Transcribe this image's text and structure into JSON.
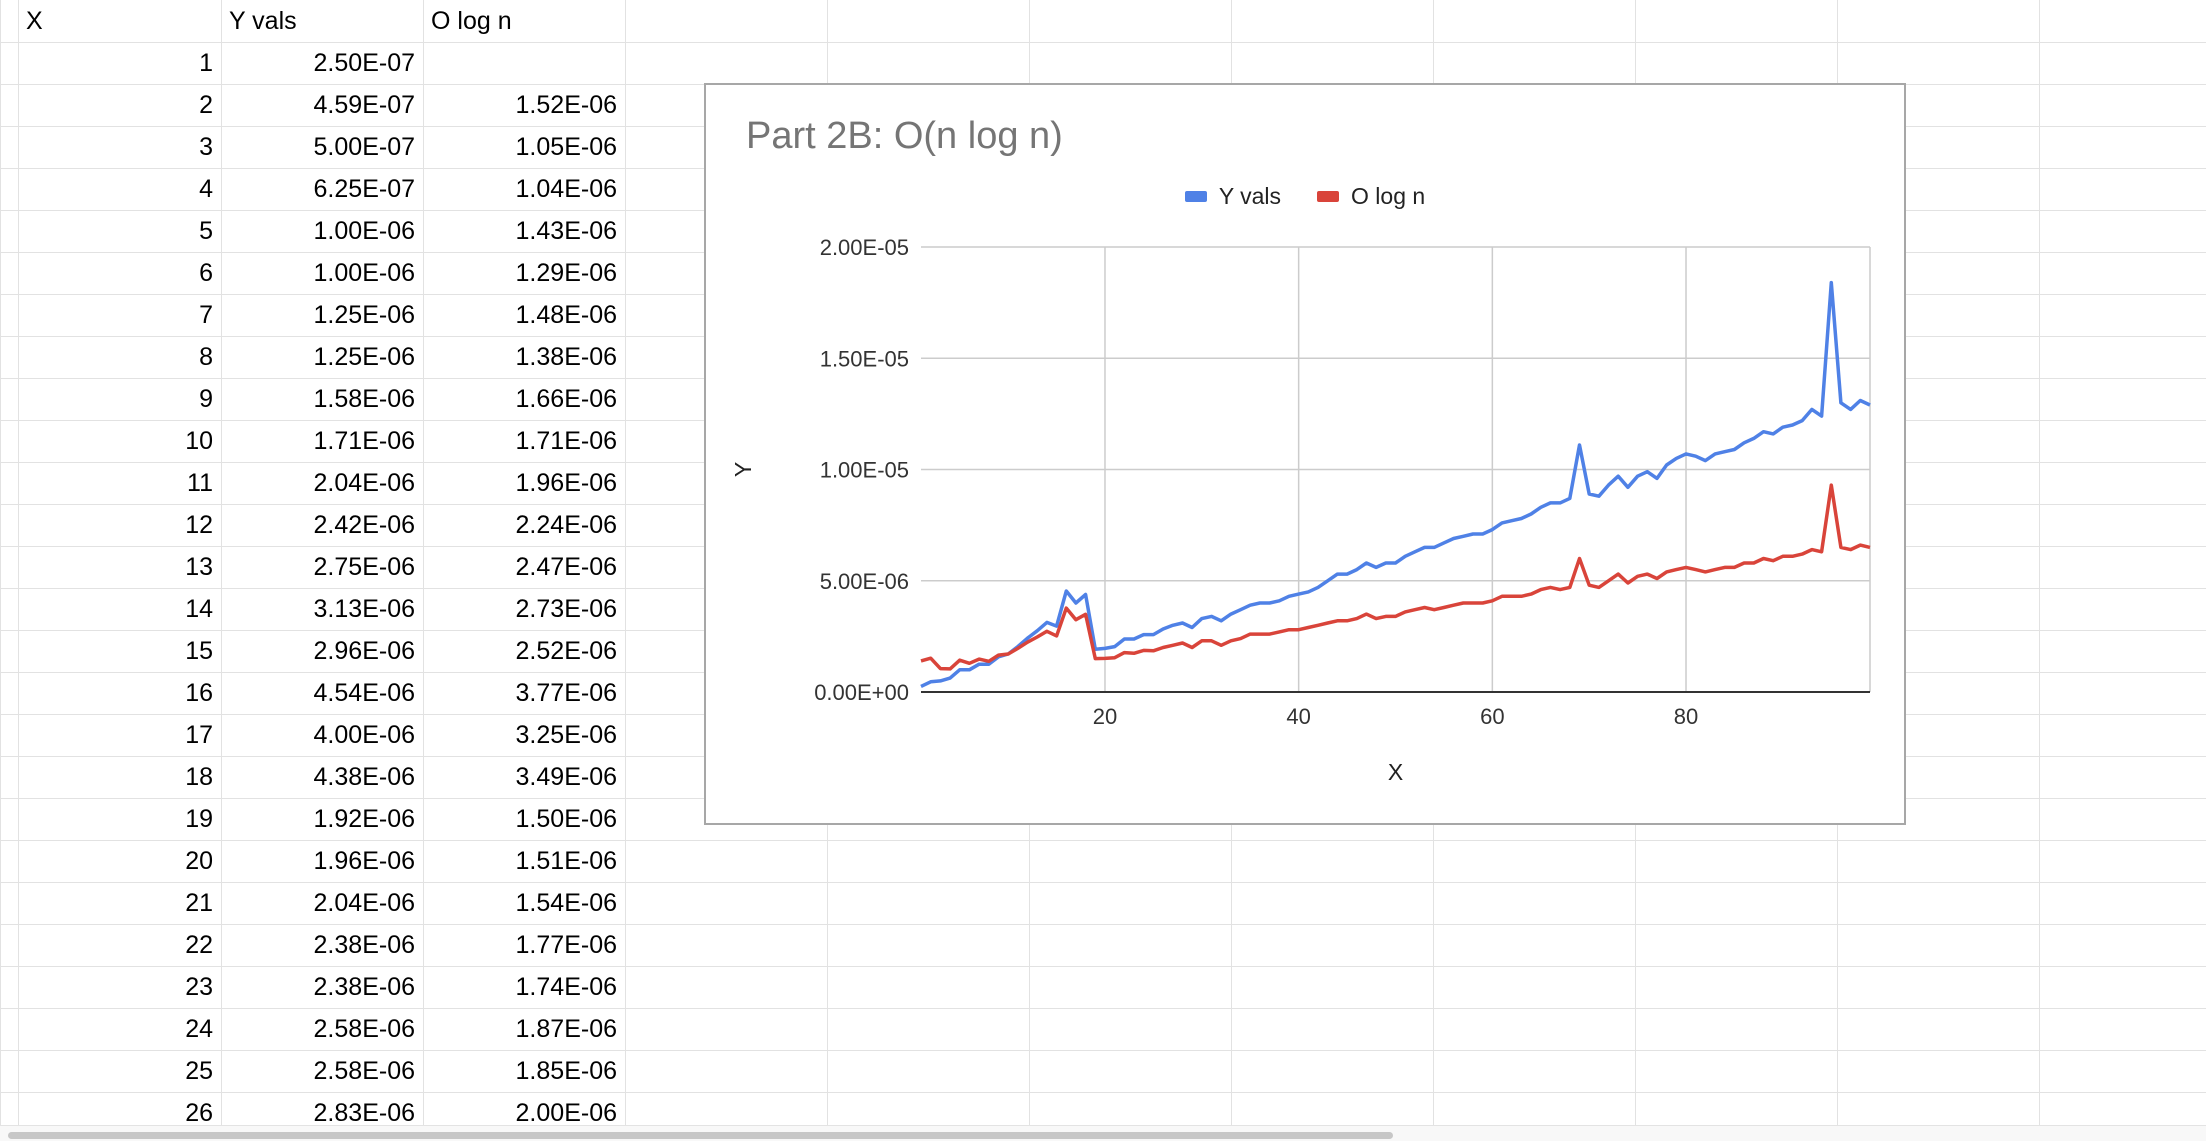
{
  "sheet": {
    "headers": [
      "X",
      "Y vals",
      "O log n"
    ],
    "rows": [
      [
        "1",
        "2.50E-07",
        ""
      ],
      [
        "2",
        "4.59E-07",
        "1.52E-06"
      ],
      [
        "3",
        "5.00E-07",
        "1.05E-06"
      ],
      [
        "4",
        "6.25E-07",
        "1.04E-06"
      ],
      [
        "5",
        "1.00E-06",
        "1.43E-06"
      ],
      [
        "6",
        "1.00E-06",
        "1.29E-06"
      ],
      [
        "7",
        "1.25E-06",
        "1.48E-06"
      ],
      [
        "8",
        "1.25E-06",
        "1.38E-06"
      ],
      [
        "9",
        "1.58E-06",
        "1.66E-06"
      ],
      [
        "10",
        "1.71E-06",
        "1.71E-06"
      ],
      [
        "11",
        "2.04E-06",
        "1.96E-06"
      ],
      [
        "12",
        "2.42E-06",
        "2.24E-06"
      ],
      [
        "13",
        "2.75E-06",
        "2.47E-06"
      ],
      [
        "14",
        "3.13E-06",
        "2.73E-06"
      ],
      [
        "15",
        "2.96E-06",
        "2.52E-06"
      ],
      [
        "16",
        "4.54E-06",
        "3.77E-06"
      ],
      [
        "17",
        "4.00E-06",
        "3.25E-06"
      ],
      [
        "18",
        "4.38E-06",
        "3.49E-06"
      ],
      [
        "19",
        "1.92E-06",
        "1.50E-06"
      ],
      [
        "20",
        "1.96E-06",
        "1.51E-06"
      ],
      [
        "21",
        "2.04E-06",
        "1.54E-06"
      ],
      [
        "22",
        "2.38E-06",
        "1.77E-06"
      ],
      [
        "23",
        "2.38E-06",
        "1.74E-06"
      ],
      [
        "24",
        "2.58E-06",
        "1.87E-06"
      ],
      [
        "25",
        "2.58E-06",
        "1.85E-06"
      ],
      [
        "26",
        "2.83E-06",
        "2.00E-06"
      ]
    ]
  },
  "chart_data": {
    "type": "line",
    "title": "Part 2B: O(n log n)",
    "xlabel": "X",
    "ylabel": "Y",
    "xlim": [
      1,
      99
    ],
    "ylim": [
      0,
      2e-05
    ],
    "x_ticks": [
      20,
      40,
      60,
      80
    ],
    "y_ticks": [
      "0.00E+00",
      "5.00E-06",
      "1.00E-05",
      "1.50E-05",
      "2.00E-05"
    ],
    "grid": true,
    "legend_position": "top",
    "series": [
      {
        "name": "Y vals",
        "color": "#4f81e6",
        "x": [
          1,
          2,
          3,
          4,
          5,
          6,
          7,
          8,
          9,
          10,
          11,
          12,
          13,
          14,
          15,
          16,
          17,
          18,
          19,
          20,
          21,
          22,
          23,
          24,
          25,
          26,
          27,
          28,
          29,
          30,
          31,
          32,
          33,
          34,
          35,
          36,
          37,
          38,
          39,
          40,
          41,
          42,
          43,
          44,
          45,
          46,
          47,
          48,
          49,
          50,
          51,
          52,
          53,
          54,
          55,
          56,
          57,
          58,
          59,
          60,
          61,
          62,
          63,
          64,
          65,
          66,
          67,
          68,
          69,
          70,
          71,
          72,
          73,
          74,
          75,
          76,
          77,
          78,
          79,
          80,
          81,
          82,
          83,
          84,
          85,
          86,
          87,
          88,
          89,
          90,
          91,
          92,
          93,
          94,
          95,
          96,
          97,
          98,
          99
        ],
        "values": [
          2.5e-07,
          4.59e-07,
          5e-07,
          6.25e-07,
          1e-06,
          1e-06,
          1.25e-06,
          1.25e-06,
          1.58e-06,
          1.71e-06,
          2.04e-06,
          2.42e-06,
          2.75e-06,
          3.13e-06,
          2.96e-06,
          4.54e-06,
          4e-06,
          4.38e-06,
          1.92e-06,
          1.96e-06,
          2.04e-06,
          2.38e-06,
          2.38e-06,
          2.58e-06,
          2.58e-06,
          2.83e-06,
          3e-06,
          3.1e-06,
          2.9e-06,
          3.3e-06,
          3.4e-06,
          3.2e-06,
          3.5e-06,
          3.7e-06,
          3.9e-06,
          4e-06,
          4e-06,
          4.1e-06,
          4.3e-06,
          4.4e-06,
          4.5e-06,
          4.7e-06,
          5e-06,
          5.3e-06,
          5.3e-06,
          5.5e-06,
          5.8e-06,
          5.6e-06,
          5.8e-06,
          5.8e-06,
          6.1e-06,
          6.3e-06,
          6.5e-06,
          6.5e-06,
          6.7e-06,
          6.9e-06,
          7e-06,
          7.1e-06,
          7.1e-06,
          7.3e-06,
          7.6e-06,
          7.7e-06,
          7.8e-06,
          8e-06,
          8.3e-06,
          8.5e-06,
          8.5e-06,
          8.7e-06,
          1.11e-05,
          8.9e-06,
          8.8e-06,
          9.3e-06,
          9.7e-06,
          9.2e-06,
          9.7e-06,
          9.9e-06,
          9.6e-06,
          1.02e-05,
          1.05e-05,
          1.07e-05,
          1.06e-05,
          1.04e-05,
          1.07e-05,
          1.08e-05,
          1.09e-05,
          1.12e-05,
          1.14e-05,
          1.17e-05,
          1.16e-05,
          1.19e-05,
          1.2e-05,
          1.22e-05,
          1.27e-05,
          1.24e-05,
          1.84e-05,
          1.3e-05,
          1.27e-05,
          1.31e-05,
          1.29e-05
        ]
      },
      {
        "name": "O log n",
        "color": "#d9443a",
        "x": [
          1,
          2,
          3,
          4,
          5,
          6,
          7,
          8,
          9,
          10,
          11,
          12,
          13,
          14,
          15,
          16,
          17,
          18,
          19,
          20,
          21,
          22,
          23,
          24,
          25,
          26,
          27,
          28,
          29,
          30,
          31,
          32,
          33,
          34,
          35,
          36,
          37,
          38,
          39,
          40,
          41,
          42,
          43,
          44,
          45,
          46,
          47,
          48,
          49,
          50,
          51,
          52,
          53,
          54,
          55,
          56,
          57,
          58,
          59,
          60,
          61,
          62,
          63,
          64,
          65,
          66,
          67,
          68,
          69,
          70,
          71,
          72,
          73,
          74,
          75,
          76,
          77,
          78,
          79,
          80,
          81,
          82,
          83,
          84,
          85,
          86,
          87,
          88,
          89,
          90,
          91,
          92,
          93,
          94,
          95,
          96,
          97,
          98,
          99
        ],
        "values": [
          1.4e-06,
          1.52e-06,
          1.05e-06,
          1.04e-06,
          1.43e-06,
          1.29e-06,
          1.48e-06,
          1.38e-06,
          1.66e-06,
          1.71e-06,
          1.96e-06,
          2.24e-06,
          2.47e-06,
          2.73e-06,
          2.52e-06,
          3.77e-06,
          3.25e-06,
          3.49e-06,
          1.5e-06,
          1.51e-06,
          1.54e-06,
          1.77e-06,
          1.74e-06,
          1.87e-06,
          1.85e-06,
          2e-06,
          2.1e-06,
          2.2e-06,
          2e-06,
          2.3e-06,
          2.3e-06,
          2.1e-06,
          2.3e-06,
          2.4e-06,
          2.6e-06,
          2.6e-06,
          2.6e-06,
          2.7e-06,
          2.8e-06,
          2.8e-06,
          2.9e-06,
          3e-06,
          3.1e-06,
          3.2e-06,
          3.2e-06,
          3.3e-06,
          3.5e-06,
          3.3e-06,
          3.4e-06,
          3.4e-06,
          3.6e-06,
          3.7e-06,
          3.8e-06,
          3.7e-06,
          3.8e-06,
          3.9e-06,
          4e-06,
          4e-06,
          4e-06,
          4.1e-06,
          4.3e-06,
          4.3e-06,
          4.3e-06,
          4.4e-06,
          4.6e-06,
          4.7e-06,
          4.6e-06,
          4.7e-06,
          6e-06,
          4.8e-06,
          4.7e-06,
          5e-06,
          5.3e-06,
          4.9e-06,
          5.2e-06,
          5.3e-06,
          5.1e-06,
          5.4e-06,
          5.5e-06,
          5.6e-06,
          5.5e-06,
          5.4e-06,
          5.5e-06,
          5.6e-06,
          5.6e-06,
          5.8e-06,
          5.8e-06,
          6e-06,
          5.9e-06,
          6.1e-06,
          6.1e-06,
          6.2e-06,
          6.4e-06,
          6.3e-06,
          9.3e-06,
          6.5e-06,
          6.4e-06,
          6.6e-06,
          6.5e-06
        ]
      }
    ]
  }
}
